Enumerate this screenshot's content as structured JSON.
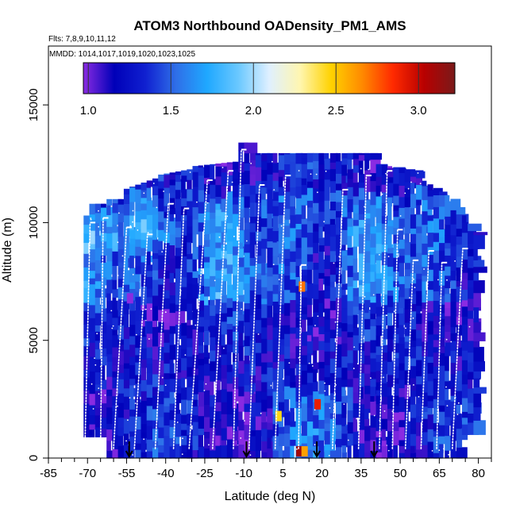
{
  "chart_data": {
    "type": "heatmap",
    "title": "ATOM3 Northbound OADensity_PM1_AMS",
    "flights_note": "Flts: 7,8,9,10,11,12",
    "dates_note": "MMDD: 1014,1017,1019,1020,1023,1025",
    "xlabel": "Latitude (deg N)",
    "ylabel": "Altitude (m)",
    "xlim": [
      -85,
      85
    ],
    "ylim": [
      0,
      17500
    ],
    "x_ticks": [
      "-85",
      "-70",
      "-55",
      "-40",
      "-25",
      "-10",
      "5",
      "20",
      "35",
      "50",
      "65",
      "80"
    ],
    "y_ticks": [
      "0",
      "5000",
      "10000",
      "15000"
    ],
    "colorbar": {
      "range": [
        0.97,
        3.22
      ],
      "ticks": [
        "1.0",
        "1.5",
        "2.0",
        "2.5",
        "3.0"
      ],
      "colors": [
        "#8a2be2",
        "#0000b8",
        "#1020d0",
        "#2f6fe8",
        "#1fa8ff",
        "#6ac8ff",
        "#dff0ff",
        "#fff6b0",
        "#ffd200",
        "#ff8a00",
        "#ff2a00",
        "#b80000",
        "#7a1a1a"
      ]
    },
    "arrow_latitudes": [
      -54,
      -9,
      18,
      40
    ],
    "profiles": [
      {
        "lat_base": -71,
        "lat_top": -69,
        "top": 10000
      },
      {
        "lat_base": -65,
        "lat_top": -64,
        "top": 10200
      },
      {
        "lat_base": -60,
        "lat_top": -55,
        "top": 9800
      },
      {
        "lat_base": -52,
        "lat_top": -47,
        "top": 9500
      },
      {
        "lat_base": -44,
        "lat_top": -39,
        "top": 10800
      },
      {
        "lat_base": -37,
        "lat_top": -33,
        "top": 10600
      },
      {
        "lat_base": -31,
        "lat_top": -24,
        "top": 11800
      },
      {
        "lat_base": -22,
        "lat_top": -16,
        "top": 12200
      },
      {
        "lat_base": -14,
        "lat_top": -11,
        "top": 13100
      },
      {
        "lat_base": -8,
        "lat_top": -4,
        "top": 11600
      },
      {
        "lat_base": 2,
        "lat_top": 6,
        "top": 12000
      },
      {
        "lat_base": 11,
        "lat_top": 12,
        "top": 8200
      },
      {
        "lat_base": 24,
        "lat_top": 28,
        "top": 11400
      },
      {
        "lat_base": 34,
        "lat_top": 37,
        "top": 12000
      },
      {
        "lat_base": 42,
        "lat_top": 45,
        "top": 12200
      },
      {
        "lat_base": 47,
        "lat_top": 49,
        "top": 9700
      },
      {
        "lat_base": 52,
        "lat_top": 55,
        "top": 8400
      },
      {
        "lat_base": 58,
        "lat_top": 61,
        "top": 8800
      },
      {
        "lat_base": 64,
        "lat_top": 66,
        "top": 8300
      },
      {
        "lat_base": 70,
        "lat_top": 74,
        "top": 8900
      }
    ],
    "hotspots": [
      {
        "lat": 3,
        "alt": 1800,
        "value": 2.45
      },
      {
        "lat": 12,
        "alt": 7300,
        "value": 2.7
      },
      {
        "lat": 18,
        "alt": 2300,
        "value": 2.9
      },
      {
        "lat": 11,
        "alt": 300,
        "value": 3.1
      },
      {
        "lat": 13,
        "alt": 300,
        "value": 2.6
      },
      {
        "lat": -54,
        "alt": 6800,
        "value": 0.97
      }
    ]
  }
}
